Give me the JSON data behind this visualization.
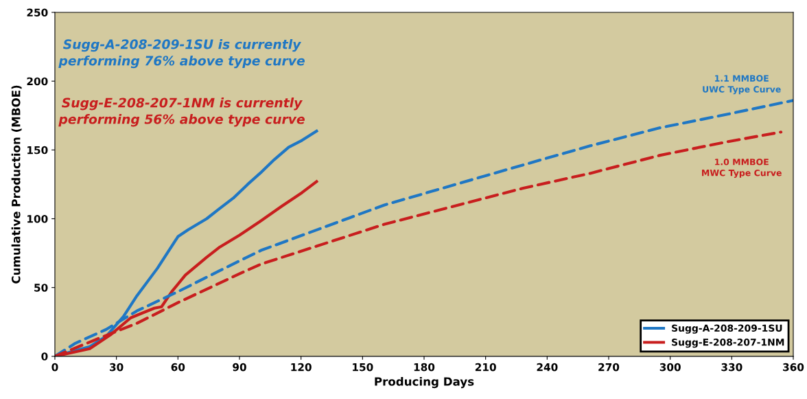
{
  "chart_data": {
    "type": "line",
    "xlabel": "Producing Days",
    "ylabel": "Cumulative Production (MBOE)",
    "xlim": [
      0,
      360
    ],
    "xticks": [
      0,
      30,
      60,
      90,
      120,
      150,
      180,
      210,
      240,
      270,
      300,
      330,
      360
    ],
    "ylim": [
      0,
      250
    ],
    "yticks": [
      0,
      50,
      100,
      150,
      200,
      250
    ],
    "grid": false,
    "legend": "bottom right",
    "series": [
      {
        "name": "Sugg-A-208-209-1SU",
        "color": "#1f77c4",
        "line_style": "solid",
        "x": [
          0,
          17,
          25,
          33.5,
          40,
          50,
          60,
          65,
          74,
          80,
          87,
          94,
          100,
          107,
          114,
          120.5,
          127.6
        ],
        "values": [
          0,
          7,
          14.5,
          29,
          44,
          64,
          87,
          92,
          100,
          107,
          115,
          125,
          133,
          143,
          152,
          157,
          163.7
        ]
      },
      {
        "name": "Sugg-E-208-207-1NM",
        "color": "#c81e1e",
        "line_style": "solid",
        "x": [
          0,
          17,
          27,
          37,
          43.5,
          48.5,
          52,
          57,
          63.6,
          74,
          80,
          90,
          100,
          110.5,
          120.5,
          127.6
        ],
        "values": [
          0,
          5.5,
          15.5,
          28,
          32,
          35,
          36,
          47,
          59,
          72,
          79,
          88,
          98,
          109,
          119,
          127
        ]
      },
      {
        "color": "#1f77c4",
        "line_style": "dashed",
        "x": [
          0,
          10,
          25,
          40,
          60,
          80,
          100.5,
          160.7,
          221,
          261,
          294.7,
          328,
          360
        ],
        "values": [
          0,
          9.5,
          19.5,
          33,
          47,
          62,
          77,
          110,
          136,
          153,
          166,
          176,
          186
        ]
      },
      {
        "color": "#c81e1e",
        "line_style": "dashed",
        "x": [
          0,
          23,
          40,
          60,
          90,
          100.5,
          160.7,
          227.7,
          261,
          294.7,
          328,
          354
        ],
        "values": [
          0,
          14,
          24,
          39,
          60,
          67,
          96,
          122,
          133,
          146,
          156,
          163
        ]
      }
    ],
    "annotations": [
      "Sugg-A-208-209-1SU is currently\nperforming 76% above type curve",
      "Sugg-E-208-207-1NM is currently\nperforming 56% above type curve",
      "1.1 MMBOE\nUWC Type Curve",
      "1.0 MMBOE\nMWC Type Curve"
    ]
  }
}
